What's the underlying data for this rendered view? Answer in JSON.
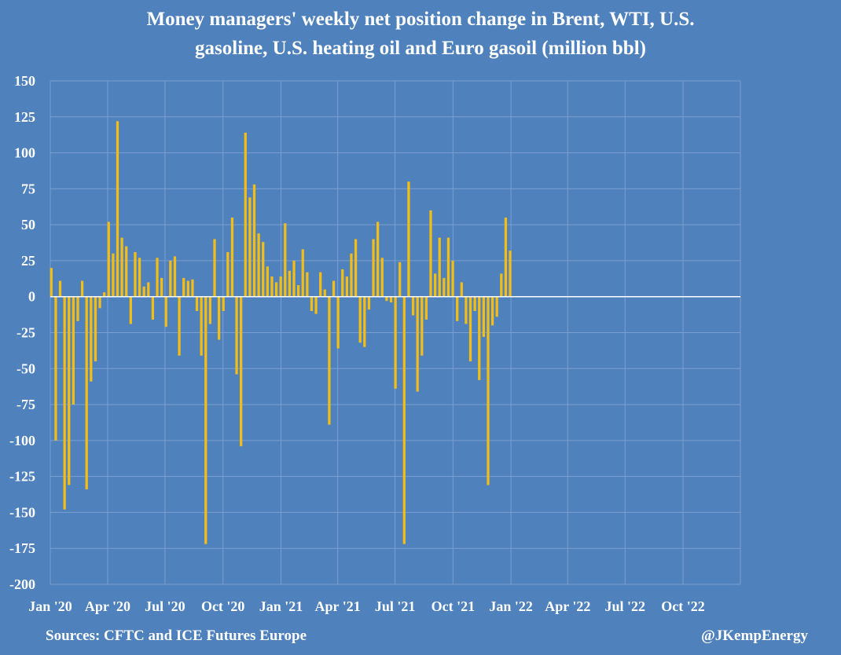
{
  "title_lines": [
    "Money managers' weekly net position change in Brent, WTI, U.S.",
    "gasoline, U.S. heating oil and Euro gasoil (million bbl)"
  ],
  "footer": {
    "source": "Sources: CFTC and ICE Futures Europe",
    "handle": "@JKempEnergy"
  },
  "colors": {
    "background": "#4f81bd",
    "bars": "#f2bd17",
    "gridlines": "#7b9fd0",
    "zero_line": "#ffffff",
    "text": "#ffffff"
  },
  "chart_data": {
    "type": "bar",
    "title": "Money managers' weekly net position change in Brent, WTI, U.S. gasoline, U.S. heating oil and Euro gasoil (million bbl)",
    "xlabel": "",
    "ylabel": "",
    "ylim": [
      -200,
      150
    ],
    "yticks": [
      150,
      125,
      100,
      75,
      50,
      25,
      0,
      -25,
      -50,
      -75,
      -100,
      -125,
      -150,
      -175,
      -200
    ],
    "xlim": [
      "2020-01-01",
      "2022-12-31"
    ],
    "x_tick_labels": [
      "Jan '20",
      "Apr '20",
      "Jul '20",
      "Oct '20",
      "Jan '21",
      "Apr '21",
      "Jul '21",
      "Oct '21",
      "Jan '22",
      "Apr '22",
      "Jul '22",
      "Oct '22"
    ],
    "x_tick_dates": [
      "2020-01-01",
      "2020-04-01",
      "2020-07-01",
      "2020-10-01",
      "2021-01-01",
      "2021-04-01",
      "2021-07-01",
      "2021-10-01",
      "2022-01-01",
      "2022-04-01",
      "2022-07-01",
      "2022-10-01"
    ],
    "grid": true,
    "series": [
      {
        "first_week": "2020-01-01",
        "week_interval_days": 7,
        "values": [
          20,
          -100,
          11,
          -148,
          -131,
          -75,
          -17,
          11,
          -134,
          -59,
          -45,
          -8,
          3,
          52,
          30,
          122,
          41,
          35,
          -19,
          31,
          27,
          7,
          10,
          -16,
          27,
          13,
          -21,
          25,
          28,
          -41,
          13,
          11,
          12,
          -10,
          -41,
          -172,
          -19,
          40,
          -30,
          -10,
          31,
          55,
          -54,
          -104,
          114,
          69,
          78,
          44,
          38,
          21,
          14,
          10,
          14,
          51,
          18,
          25,
          8,
          33,
          17,
          -10,
          -12,
          17,
          5,
          -89,
          11,
          -36,
          19,
          14,
          30,
          40,
          -32,
          -35,
          -9,
          40,
          52,
          27,
          -3,
          -4,
          -64,
          24,
          -172,
          80,
          -13,
          -66,
          -41,
          -16,
          60,
          16,
          41,
          13,
          41,
          25,
          -17,
          10,
          -19,
          -45,
          -10,
          -58,
          -28,
          -131,
          -20,
          -14,
          16,
          55,
          32
        ]
      }
    ]
  }
}
